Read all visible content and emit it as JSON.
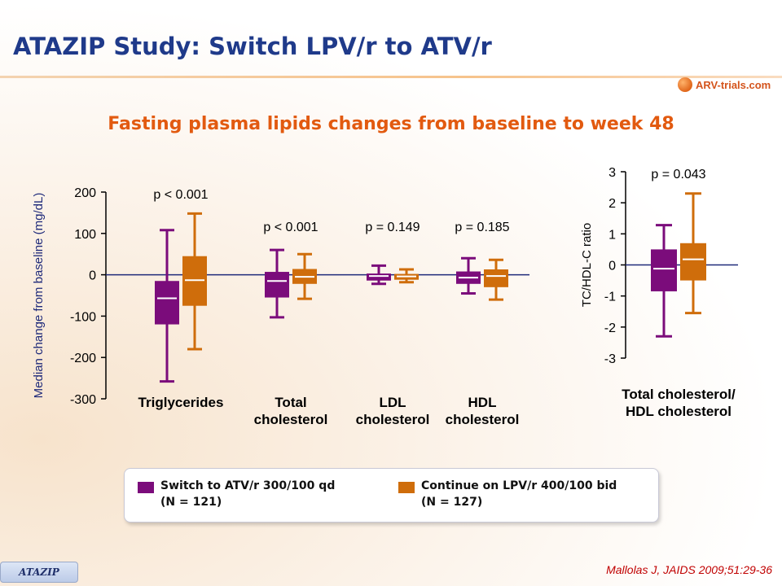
{
  "slide": {
    "title": "ATAZIP Study: Switch LPV/r to ATV/r",
    "subtitle": "Fasting plasma lipids changes from baseline to week 48",
    "logo_text": "ARV-trials.com",
    "badge": "ATAZIP",
    "citation": "Mallolas J, JAIDS 2009;51:29-36"
  },
  "colors": {
    "atv": "#7b0c7b",
    "lpv": "#cf6d0b",
    "title": "#1f3a8a",
    "subtitle": "#e25a10",
    "citation": "#c00000"
  },
  "legend": {
    "items": [
      {
        "line1": "Switch to ATV/r 300/100 qd",
        "line2": "(N = 121)",
        "color": "#7b0c7b"
      },
      {
        "line1": "Continue on LPV/r 400/100 bid",
        "line2": "(N = 127)",
        "color": "#cf6d0b"
      }
    ]
  },
  "chart_data": [
    {
      "type": "boxplot",
      "ylabel": "Median change from baseline (mg/dL)",
      "ylim": [
        -300,
        200
      ],
      "yticks": [
        200,
        100,
        0,
        -100,
        -200,
        -300
      ],
      "ytick_labels": [
        "200",
        "100",
        "0",
        "-100",
        "-200",
        "-300"
      ],
      "grid": false,
      "series_names": [
        "Switch to ATV/r 300/100 qd",
        "Continue on LPV/r 400/100 bid"
      ],
      "groups": [
        {
          "label_lines": [
            "Triglycerides"
          ],
          "pvalue": "p < 0.001",
          "boxes": [
            {
              "min": -258,
              "q1": -120,
              "median": -57,
              "q3": -15,
              "max": 108
            },
            {
              "min": -180,
              "q1": -75,
              "median": -13,
              "q3": 45,
              "max": 148
            }
          ]
        },
        {
          "label_lines": [
            "Total",
            "cholesterol"
          ],
          "pvalue": "p < 0.001",
          "boxes": [
            {
              "min": -103,
              "q1": -55,
              "median": -15,
              "q3": 7,
              "max": 60
            },
            {
              "min": -58,
              "q1": -22,
              "median": -5,
              "q3": 14,
              "max": 50
            }
          ]
        },
        {
          "label_lines": [
            "LDL",
            "cholesterol"
          ],
          "pvalue": "p = 0.149",
          "boxes": [
            {
              "min": -22,
              "q1": -14,
              "median": -3,
              "q3": 3,
              "max": 22
            },
            {
              "min": -18,
              "q1": -12,
              "median": -4,
              "q3": 2,
              "max": 13
            }
          ]
        },
        {
          "label_lines": [
            "HDL",
            "cholesterol"
          ],
          "pvalue": "p = 0.185",
          "boxes": [
            {
              "min": -45,
              "q1": -22,
              "median": -7,
              "q3": 8,
              "max": 40
            },
            {
              "min": -60,
              "q1": -30,
              "median": -3,
              "q3": 13,
              "max": 36
            }
          ]
        }
      ]
    },
    {
      "type": "boxplot",
      "ylabel": "TC/HDL-C ratio",
      "ylim": [
        -3,
        3
      ],
      "yticks": [
        3,
        2,
        1,
        0,
        -1,
        -2,
        -3
      ],
      "ytick_labels": [
        "3",
        "2",
        "1",
        "0",
        "-1",
        "-2",
        "-3"
      ],
      "grid": false,
      "series_names": [
        "Switch to ATV/r 300/100 qd",
        "Continue on LPV/r 400/100 bid"
      ],
      "groups": [
        {
          "label_lines": [
            "Total cholesterol/",
            "HDL cholesterol"
          ],
          "pvalue": "p = 0.043",
          "boxes": [
            {
              "min": -2.3,
              "q1": -0.85,
              "median": -0.12,
              "q3": 0.5,
              "max": 1.28
            },
            {
              "min": -1.55,
              "q1": -0.5,
              "median": 0.18,
              "q3": 0.7,
              "max": 2.3
            }
          ]
        }
      ]
    }
  ]
}
